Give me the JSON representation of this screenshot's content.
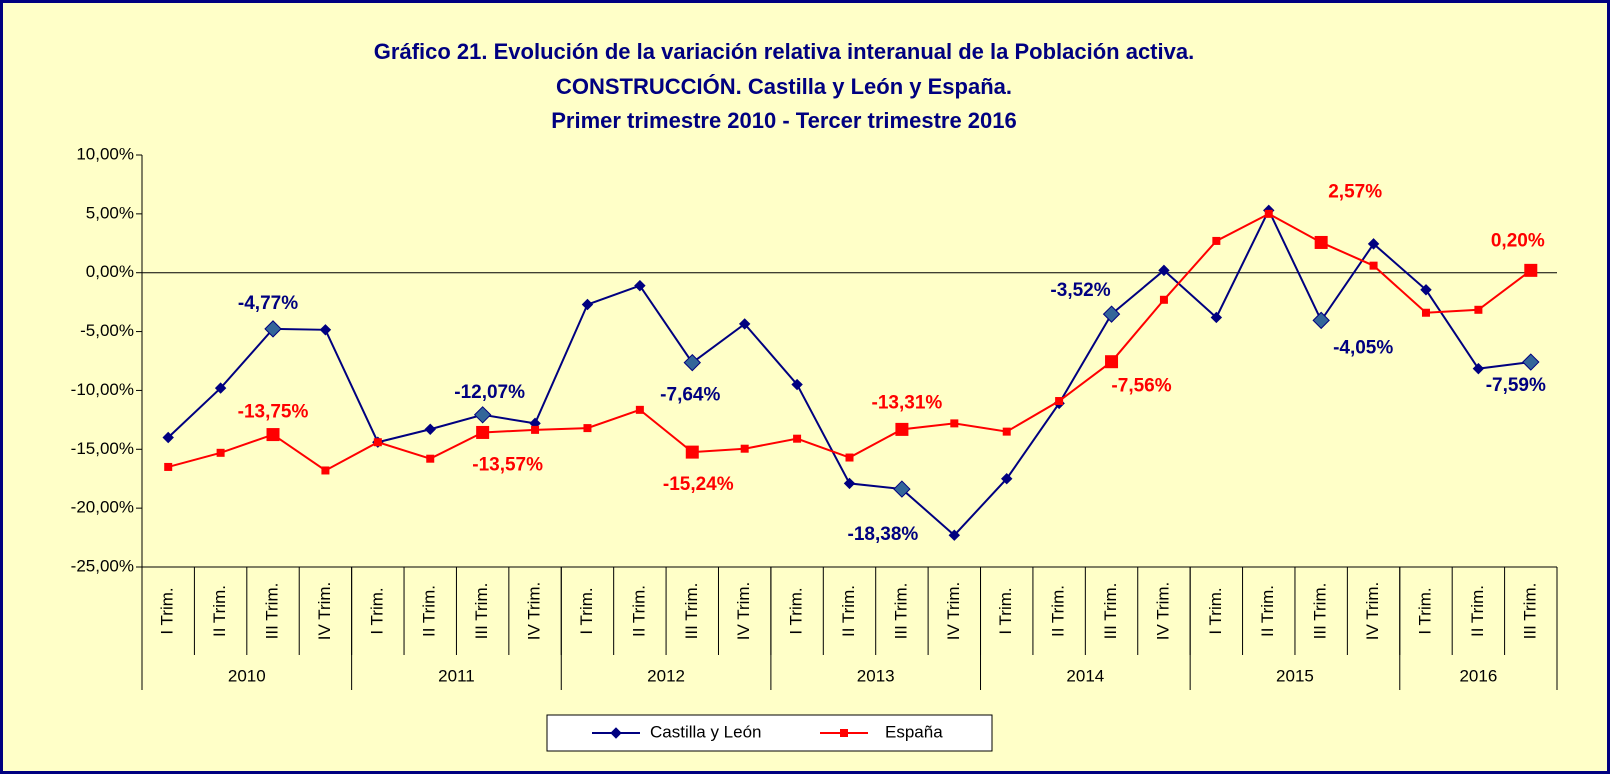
{
  "chart_data": {
    "type": "line",
    "title": [
      "Gráfico 21. Evolución de la variación relativa interanual de la Población activa.",
      "CONSTRUCCIÓN. Castilla y León y España.",
      "Primer trimestre 2010 - Tercer trimestre 2016"
    ],
    "categories": [
      "I Trim.",
      "II Trim.",
      "III Trim.",
      "IV Trim.",
      "I Trim.",
      "II Trim.",
      "III Trim.",
      "IV Trim.",
      "I Trim.",
      "II Trim.",
      "III Trim.",
      "IV Trim.",
      "I Trim.",
      "II Trim.",
      "III Trim.",
      "IV Trim.",
      "I Trim.",
      "II Trim.",
      "III Trim.",
      "IV Trim.",
      "I Trim.",
      "II Trim.",
      "III Trim.",
      "IV Trim.",
      "I Trim.",
      "II Trim.",
      "III Trim."
    ],
    "category_groups": [
      {
        "label": "2010",
        "span": 4
      },
      {
        "label": "2011",
        "span": 4
      },
      {
        "label": "2012",
        "span": 4
      },
      {
        "label": "2013",
        "span": 4
      },
      {
        "label": "2014",
        "span": 4
      },
      {
        "label": "2015",
        "span": 4
      },
      {
        "label": "2016",
        "span": 3
      }
    ],
    "series": [
      {
        "name": "Castilla y León",
        "color": "#000080",
        "values": [
          -14.0,
          -9.8,
          -4.77,
          -4.85,
          -14.4,
          -13.3,
          -12.07,
          -12.8,
          -2.7,
          -1.1,
          -7.64,
          -4.35,
          -9.5,
          -17.9,
          -18.38,
          -22.3,
          -17.5,
          -11.1,
          -3.52,
          0.2,
          -3.8,
          5.3,
          -4.05,
          2.45,
          -1.45,
          -8.15,
          -7.59
        ],
        "value_labels": [
          null,
          null,
          "-4,77%",
          null,
          null,
          null,
          "-12,07%",
          null,
          null,
          null,
          "-7,64%",
          null,
          null,
          null,
          "-18,38%",
          null,
          null,
          null,
          "-3,52%",
          null,
          null,
          null,
          "-4,05%",
          null,
          null,
          null,
          "-7,59%"
        ]
      },
      {
        "name": "España",
        "color": "#ff0000",
        "values": [
          -16.5,
          -15.3,
          -13.75,
          -16.8,
          -14.4,
          -15.8,
          -13.57,
          -13.35,
          -13.2,
          -11.65,
          -15.24,
          -14.95,
          -14.1,
          -15.7,
          -13.31,
          -12.8,
          -13.5,
          -10.9,
          -7.56,
          -2.3,
          2.7,
          5.0,
          2.57,
          0.6,
          -3.4,
          -3.15,
          0.2
        ],
        "value_labels": [
          null,
          null,
          "-13,75%",
          null,
          null,
          null,
          "-13,57%",
          null,
          null,
          null,
          "-15,24%",
          null,
          null,
          null,
          "-13,31%",
          null,
          null,
          null,
          "-7,56%",
          null,
          null,
          null,
          "2,57%",
          null,
          null,
          null,
          "0,20%"
        ]
      }
    ],
    "ylim": [
      -25,
      10
    ],
    "yticks": [
      {
        "value": 10,
        "label": "10,00%"
      },
      {
        "value": 5,
        "label": "5,00%"
      },
      {
        "value": 0,
        "label": "0,00%"
      },
      {
        "value": -5,
        "label": "-5,00%"
      },
      {
        "value": -10,
        "label": "-10,00%"
      },
      {
        "value": -15,
        "label": "-15,00%"
      },
      {
        "value": -20,
        "label": "-20,00%"
      },
      {
        "value": -25,
        "label": "-25,00%"
      }
    ],
    "legend": "bottom"
  }
}
